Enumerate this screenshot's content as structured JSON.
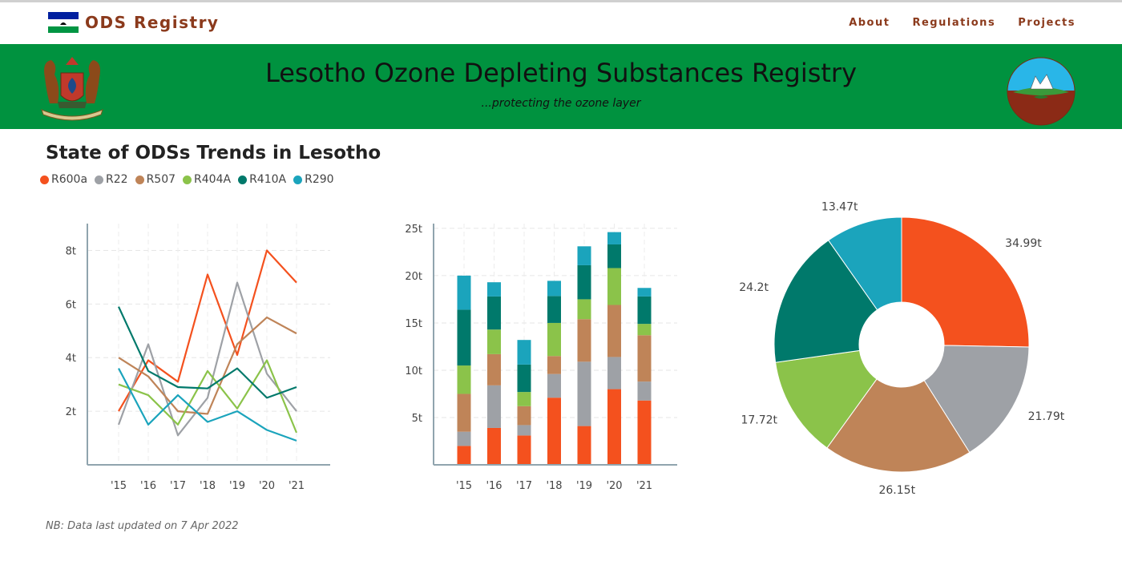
{
  "navbar": {
    "brand": "ODS Registry",
    "links": [
      "About",
      "Regulations",
      "Projects"
    ]
  },
  "banner": {
    "title": "Lesotho Ozone Depleting Substances Registry",
    "subtitle": "...protecting the ozone layer"
  },
  "section": {
    "title": "State of ODSs Trends in Lesotho"
  },
  "colors": {
    "brand": "#8b3a1c",
    "banner": "#00923f",
    "R600a": "#f4511e",
    "R22": "#9ea1a6",
    "R507": "#bf8458",
    "R404A": "#8bc34a",
    "R410A": "#00796b",
    "R290": "#1ba4bc"
  },
  "footnote": "NB: Data last updated on 7 Apr 2022",
  "chart_data": [
    {
      "type": "line",
      "categories": [
        "'15",
        "'16",
        "'17",
        "'18",
        "'19",
        "'20",
        "'21"
      ],
      "ylim": [
        0,
        9
      ],
      "yticks": [
        2,
        4,
        6,
        8
      ],
      "ytick_suffix": "t",
      "grid": true,
      "legend": "top-left",
      "series": [
        {
          "name": "R600a",
          "values": [
            2.0,
            3.9,
            3.1,
            7.1,
            4.1,
            8.0,
            6.8
          ]
        },
        {
          "name": "R22",
          "values": [
            1.5,
            4.5,
            1.1,
            2.5,
            6.8,
            3.4,
            2.0
          ]
        },
        {
          "name": "R507",
          "values": [
            4.0,
            3.3,
            2.0,
            1.9,
            4.5,
            5.5,
            4.9
          ]
        },
        {
          "name": "R404A",
          "values": [
            3.0,
            2.6,
            1.5,
            3.5,
            2.1,
            3.9,
            1.2
          ]
        },
        {
          "name": "R410A",
          "values": [
            5.9,
            3.5,
            2.9,
            2.85,
            3.6,
            2.5,
            2.9
          ]
        },
        {
          "name": "R290",
          "values": [
            3.6,
            1.5,
            2.6,
            1.6,
            2.0,
            1.3,
            0.9
          ]
        }
      ]
    },
    {
      "type": "bar",
      "stacked": true,
      "categories": [
        "'15",
        "'16",
        "'17",
        "'18",
        "'19",
        "'20",
        "'21"
      ],
      "ylim": [
        0,
        25.5
      ],
      "yticks": [
        5,
        10,
        15,
        20,
        25
      ],
      "ytick_suffix": "t",
      "grid": true,
      "series": [
        {
          "name": "R600a",
          "values": [
            2.0,
            3.9,
            3.1,
            7.1,
            4.1,
            8.0,
            6.8
          ]
        },
        {
          "name": "R22",
          "values": [
            1.5,
            4.5,
            1.1,
            2.5,
            6.8,
            3.4,
            2.0
          ]
        },
        {
          "name": "R507",
          "values": [
            4.0,
            3.3,
            2.0,
            1.9,
            4.5,
            5.5,
            4.9
          ]
        },
        {
          "name": "R404A",
          "values": [
            3.0,
            2.6,
            1.5,
            3.5,
            2.1,
            3.9,
            1.2
          ]
        },
        {
          "name": "R410A",
          "values": [
            5.9,
            3.5,
            2.9,
            2.85,
            3.6,
            2.5,
            2.9
          ]
        },
        {
          "name": "R290",
          "values": [
            3.6,
            1.5,
            2.6,
            1.6,
            2.0,
            1.3,
            0.9
          ]
        }
      ]
    },
    {
      "type": "pie",
      "donut": true,
      "labels": [
        "R600a",
        "R22",
        "R507",
        "R404A",
        "R410A",
        "R290"
      ],
      "values": [
        34.99,
        21.79,
        26.15,
        17.72,
        24.2,
        13.47
      ],
      "value_labels": [
        "34.99t",
        "21.79t",
        "26.15t",
        "17.72t",
        "24.2t",
        "13.47t"
      ]
    }
  ]
}
